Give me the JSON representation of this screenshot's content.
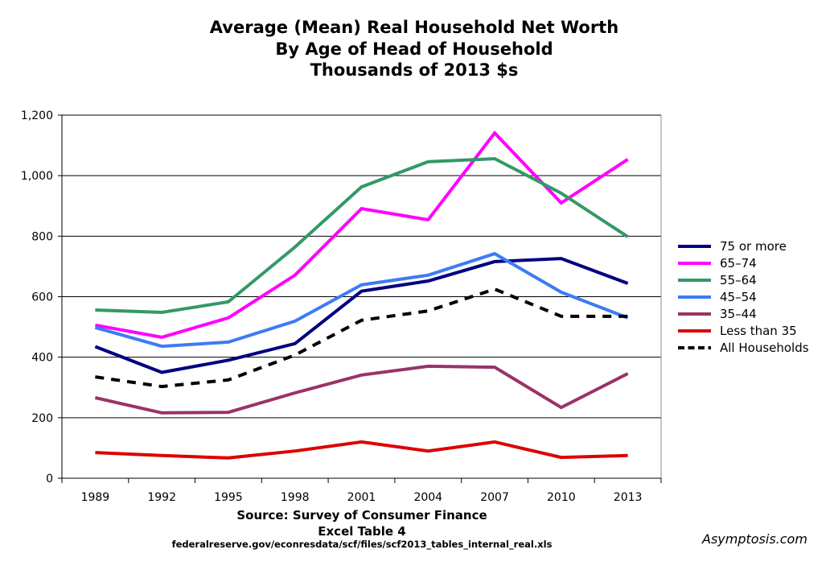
{
  "chart_data": {
    "type": "line",
    "title": "Average (Mean) Real Household Net Worth",
    "subtitle": "By Age of Head of Household",
    "units": "Thousands of 2013 $s",
    "categories": [
      "1989",
      "1992",
      "1995",
      "1998",
      "2001",
      "2004",
      "2007",
      "2010",
      "2013"
    ],
    "ylim": [
      0,
      1200
    ],
    "yticks": [
      0,
      200,
      400,
      600,
      800,
      1000,
      1200
    ],
    "ytick_labels": [
      "0",
      "200",
      "400",
      "600",
      "800",
      "1,000",
      "1,200"
    ],
    "grid": true,
    "legend_position": "right",
    "series": [
      {
        "name": "75 or more",
        "color": "#000080",
        "style": "solid",
        "values": [
          435,
          350,
          390,
          445,
          618,
          652,
          716,
          726,
          644
        ]
      },
      {
        "name": "65–74",
        "color": "#ff00ff",
        "style": "solid",
        "values": [
          506,
          466,
          530,
          671,
          891,
          854,
          1141,
          910,
          1054
        ]
      },
      {
        "name": "55–64",
        "color": "#339966",
        "style": "solid",
        "values": [
          556,
          548,
          583,
          764,
          963,
          1046,
          1056,
          942,
          798
        ]
      },
      {
        "name": "45–54",
        "color": "#3d7bf5",
        "style": "solid",
        "values": [
          498,
          436,
          450,
          519,
          639,
          671,
          742,
          615,
          530
        ]
      },
      {
        "name": "35–44",
        "color": "#993366",
        "style": "solid",
        "values": [
          266,
          216,
          218,
          282,
          341,
          370,
          367,
          234,
          346
        ]
      },
      {
        "name": "Less than 35",
        "color": "#dd0000",
        "style": "solid",
        "values": [
          85,
          75,
          67,
          90,
          120,
          90,
          120,
          69,
          75
        ]
      },
      {
        "name": "All Households",
        "color": "#000000",
        "style": "dashed",
        "values": [
          335,
          303,
          325,
          407,
          522,
          553,
          625,
          535,
          535
        ]
      }
    ]
  },
  "source": {
    "line1": "Source: Survey of Consumer Finance",
    "line2": "Excel Table 4",
    "url": "federalreserve.gov/econresdata/scf/files/scf2013_tables_internal_real.xls"
  },
  "watermark": "Asymptosis.com"
}
